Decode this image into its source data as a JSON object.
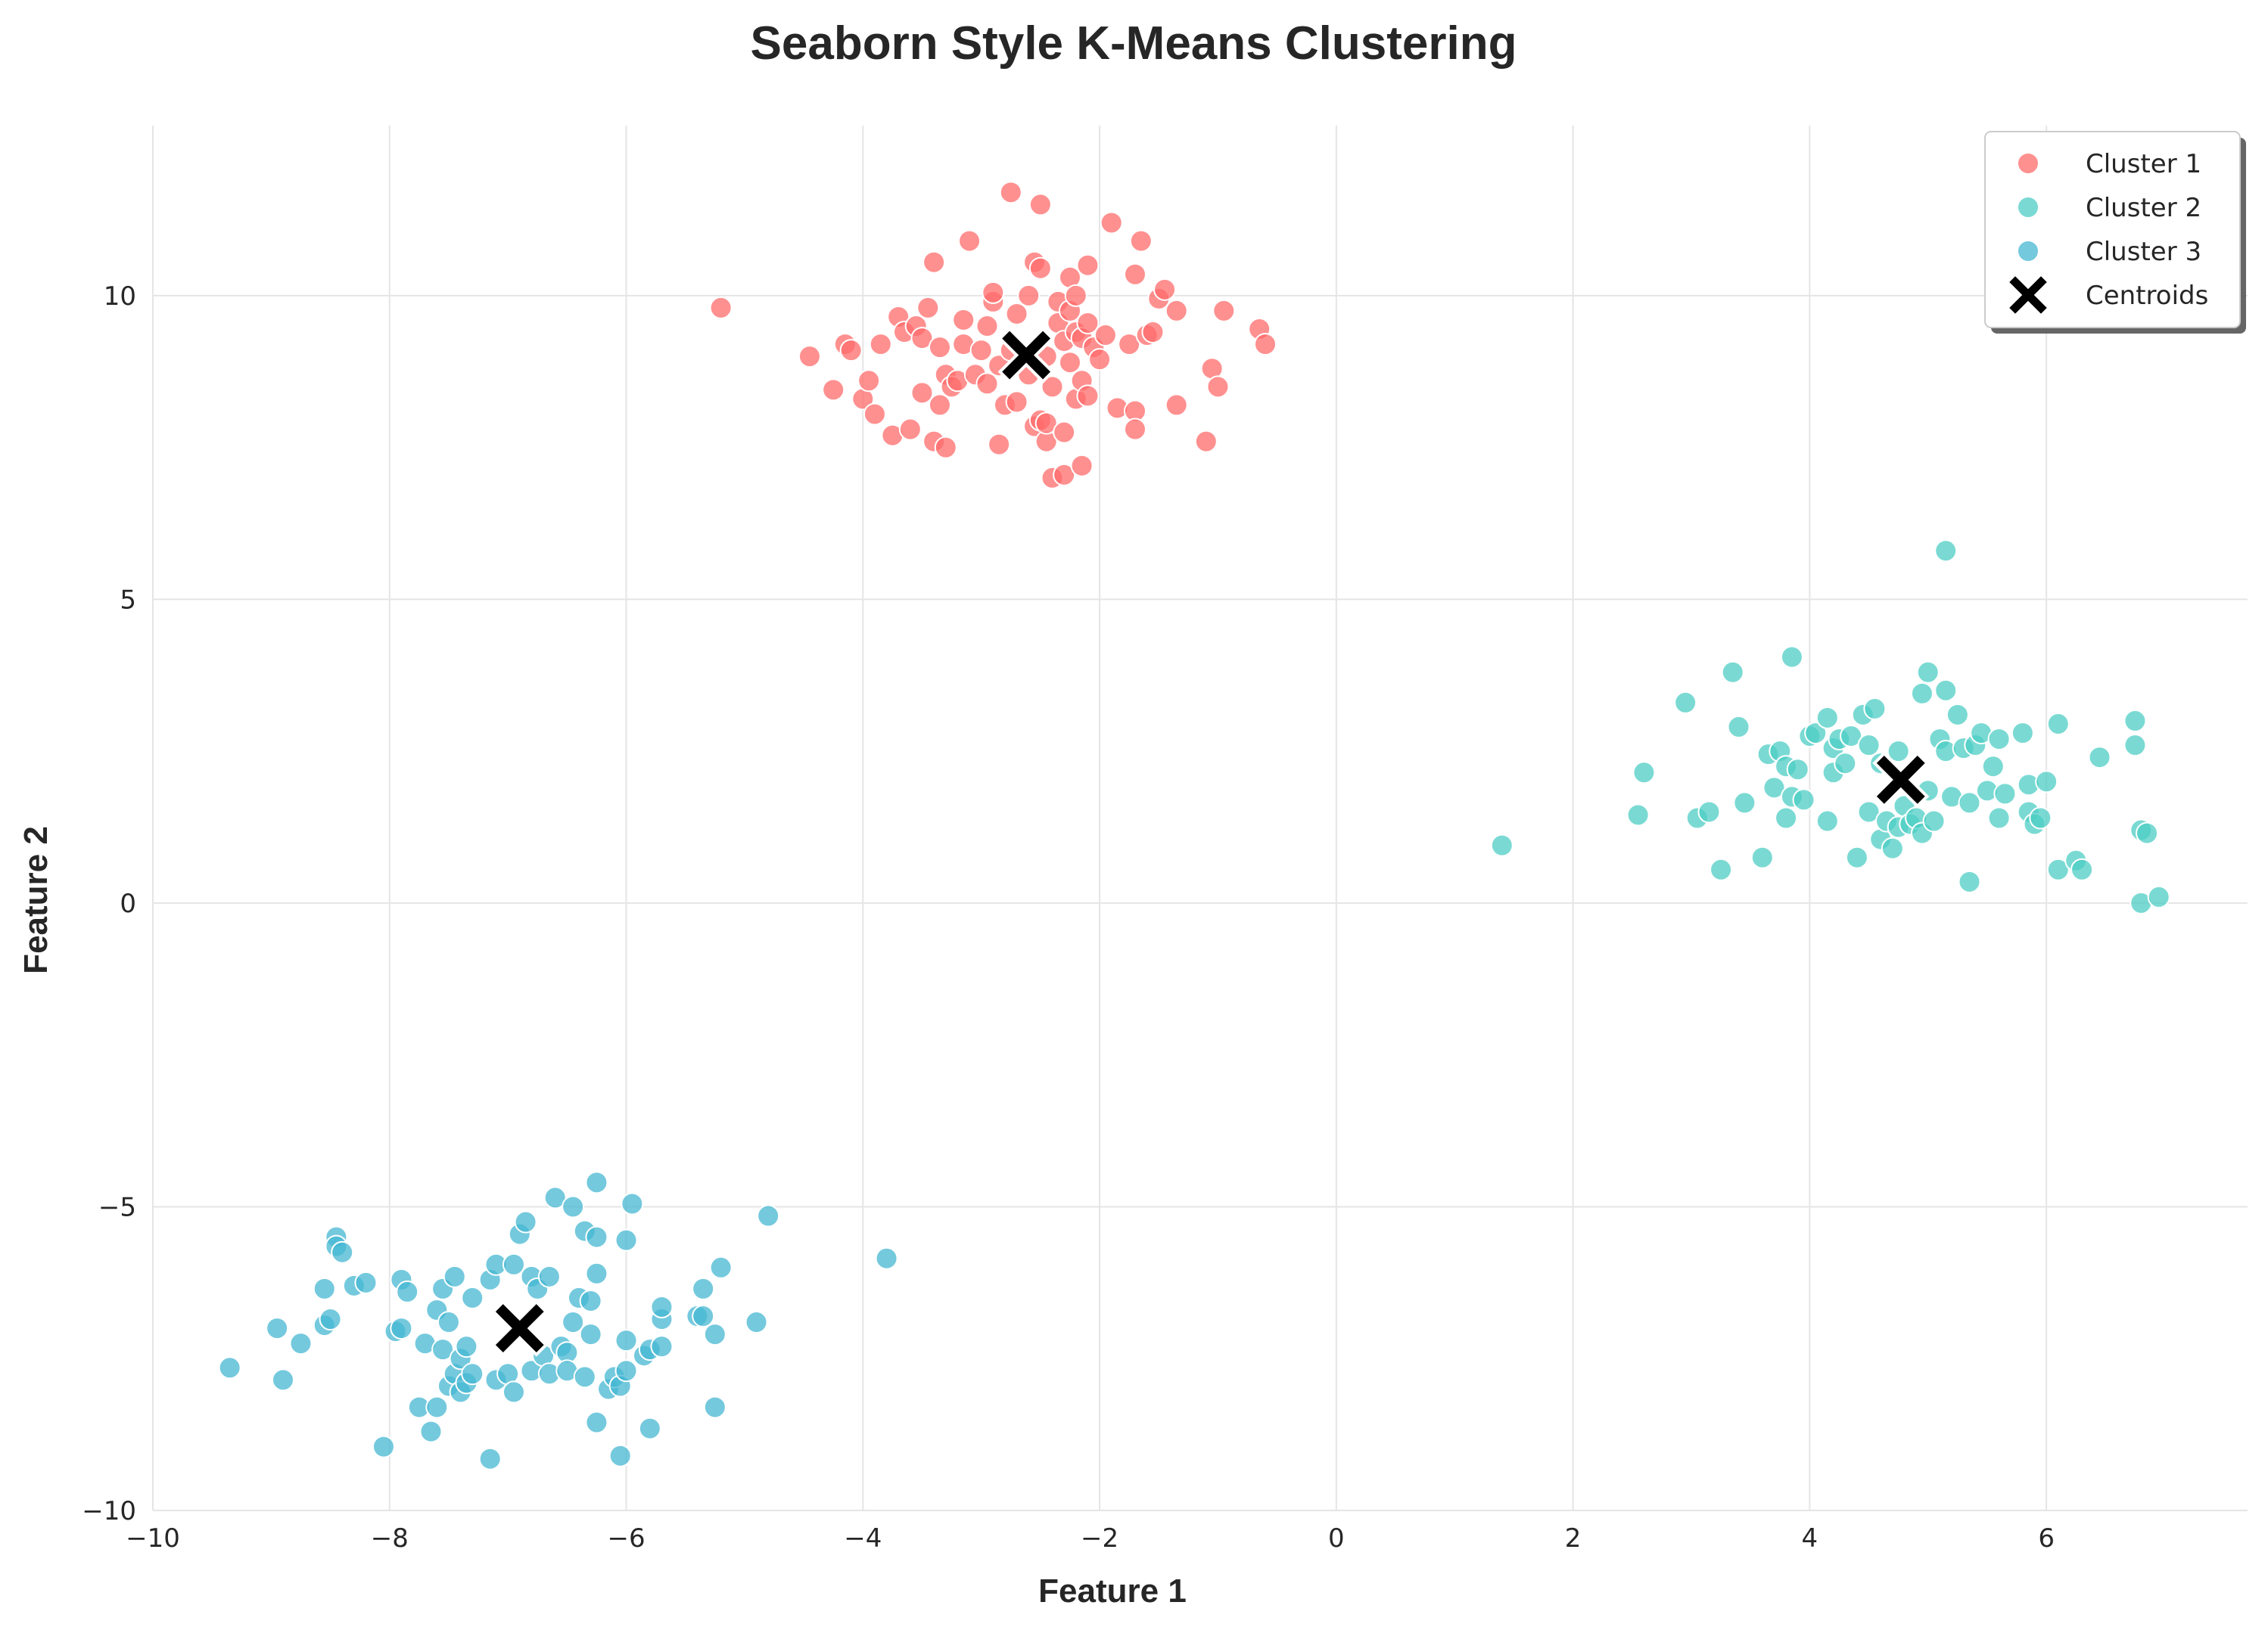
{
  "chart_data": {
    "type": "scatter",
    "title": "Seaborn Style K-Means Clustering",
    "xlabel": "Feature 1",
    "ylabel": "Feature 2",
    "xlim": [
      -10,
      7.7
    ],
    "ylim": [
      -10,
      12.8
    ],
    "xticks": [
      -10,
      -8,
      -6,
      -4,
      -2,
      0,
      2,
      4,
      6
    ],
    "yticks": [
      -10,
      -5,
      0,
      5,
      10
    ],
    "grid": true,
    "legend_position": "top-right",
    "series": [
      {
        "name": "Cluster 1",
        "color": "#ff6b6b",
        "points": [
          [
            -5.2,
            9.8
          ],
          [
            -4.45,
            9.0
          ],
          [
            -4.25,
            8.45
          ],
          [
            -4.15,
            9.2
          ],
          [
            -4.1,
            9.1
          ],
          [
            -4.0,
            8.3
          ],
          [
            -3.95,
            8.6
          ],
          [
            -3.9,
            8.05
          ],
          [
            -3.85,
            9.2
          ],
          [
            -3.75,
            7.7
          ],
          [
            -3.7,
            9.65
          ],
          [
            -3.65,
            9.4
          ],
          [
            -3.6,
            7.8
          ],
          [
            -3.55,
            9.5
          ],
          [
            -3.5,
            8.4
          ],
          [
            -3.5,
            9.3
          ],
          [
            -3.45,
            9.8
          ],
          [
            -3.4,
            10.55
          ],
          [
            -3.4,
            7.6
          ],
          [
            -3.35,
            8.2
          ],
          [
            -3.35,
            9.15
          ],
          [
            -3.3,
            7.5
          ],
          [
            -3.3,
            8.7
          ],
          [
            -3.25,
            8.5
          ],
          [
            -3.2,
            8.6
          ],
          [
            -3.15,
            9.2
          ],
          [
            -3.15,
            9.6
          ],
          [
            -3.1,
            10.9
          ],
          [
            -3.05,
            8.7
          ],
          [
            -3.0,
            9.1
          ],
          [
            -2.95,
            9.5
          ],
          [
            -2.95,
            8.55
          ],
          [
            -2.9,
            9.9
          ],
          [
            -2.9,
            10.05
          ],
          [
            -2.85,
            8.85
          ],
          [
            -2.85,
            7.55
          ],
          [
            -2.8,
            8.2
          ],
          [
            -2.75,
            9.1
          ],
          [
            -2.75,
            11.7
          ],
          [
            -2.7,
            8.25
          ],
          [
            -2.7,
            9.7
          ],
          [
            -2.6,
            8.7
          ],
          [
            -2.6,
            10.0
          ],
          [
            -2.55,
            10.55
          ],
          [
            -2.55,
            7.85
          ],
          [
            -2.5,
            10.45
          ],
          [
            -2.5,
            7.95
          ],
          [
            -2.5,
            11.5
          ],
          [
            -2.45,
            7.6
          ],
          [
            -2.45,
            7.9
          ],
          [
            -2.45,
            9.0
          ],
          [
            -2.4,
            7.0
          ],
          [
            -2.4,
            8.5
          ],
          [
            -2.35,
            9.55
          ],
          [
            -2.35,
            9.9
          ],
          [
            -2.3,
            7.05
          ],
          [
            -2.3,
            7.75
          ],
          [
            -2.3,
            9.25
          ],
          [
            -2.25,
            10.3
          ],
          [
            -2.25,
            9.75
          ],
          [
            -2.25,
            8.9
          ],
          [
            -2.2,
            8.3
          ],
          [
            -2.2,
            9.4
          ],
          [
            -2.2,
            10.0
          ],
          [
            -2.15,
            9.3
          ],
          [
            -2.15,
            8.6
          ],
          [
            -2.15,
            7.2
          ],
          [
            -2.1,
            10.5
          ],
          [
            -2.1,
            9.55
          ],
          [
            -2.1,
            8.35
          ],
          [
            -2.05,
            9.15
          ],
          [
            -2.0,
            8.95
          ],
          [
            -1.95,
            9.35
          ],
          [
            -1.9,
            11.2
          ],
          [
            -1.85,
            8.15
          ],
          [
            -1.75,
            9.2
          ],
          [
            -1.7,
            8.1
          ],
          [
            -1.7,
            7.8
          ],
          [
            -1.7,
            10.35
          ],
          [
            -1.65,
            10.9
          ],
          [
            -1.6,
            9.35
          ],
          [
            -1.55,
            9.4
          ],
          [
            -1.5,
            9.95
          ],
          [
            -1.45,
            10.1
          ],
          [
            -1.35,
            8.2
          ],
          [
            -1.35,
            9.75
          ],
          [
            -1.1,
            7.6
          ],
          [
            -1.05,
            8.8
          ],
          [
            -1.0,
            8.5
          ],
          [
            -0.95,
            9.75
          ],
          [
            -0.65,
            9.45
          ],
          [
            -0.6,
            9.2
          ]
        ]
      },
      {
        "name": "Cluster 2",
        "color": "#4ecdc4",
        "points": [
          [
            1.4,
            0.95
          ],
          [
            2.55,
            1.45
          ],
          [
            2.6,
            2.15
          ],
          [
            2.95,
            3.3
          ],
          [
            3.05,
            1.4
          ],
          [
            3.15,
            1.5
          ],
          [
            3.25,
            0.55
          ],
          [
            3.35,
            3.8
          ],
          [
            3.4,
            2.9
          ],
          [
            3.45,
            1.65
          ],
          [
            3.6,
            0.75
          ],
          [
            3.65,
            2.45
          ],
          [
            3.7,
            1.9
          ],
          [
            3.75,
            2.5
          ],
          [
            3.8,
            2.25
          ],
          [
            3.8,
            1.4
          ],
          [
            3.85,
            4.05
          ],
          [
            3.85,
            1.75
          ],
          [
            3.9,
            2.2
          ],
          [
            3.95,
            1.7
          ],
          [
            4.0,
            2.75
          ],
          [
            4.05,
            2.8
          ],
          [
            4.15,
            3.05
          ],
          [
            4.15,
            1.35
          ],
          [
            4.2,
            2.55
          ],
          [
            4.2,
            2.15
          ],
          [
            4.25,
            2.7
          ],
          [
            4.3,
            2.3
          ],
          [
            4.35,
            2.75
          ],
          [
            4.4,
            0.75
          ],
          [
            4.45,
            3.1
          ],
          [
            4.5,
            1.5
          ],
          [
            4.5,
            2.6
          ],
          [
            4.55,
            3.2
          ],
          [
            4.6,
            1.05
          ],
          [
            4.6,
            2.3
          ],
          [
            4.65,
            1.35
          ],
          [
            4.7,
            0.9
          ],
          [
            4.75,
            1.25
          ],
          [
            4.75,
            2.5
          ],
          [
            4.8,
            1.6
          ],
          [
            4.85,
            1.3
          ],
          [
            4.9,
            1.4
          ],
          [
            4.95,
            1.15
          ],
          [
            4.95,
            3.45
          ],
          [
            5.0,
            3.8
          ],
          [
            5.0,
            1.85
          ],
          [
            5.05,
            1.35
          ],
          [
            5.1,
            2.7
          ],
          [
            5.15,
            2.5
          ],
          [
            5.15,
            5.8
          ],
          [
            5.15,
            3.5
          ],
          [
            5.2,
            1.75
          ],
          [
            5.25,
            3.1
          ],
          [
            5.3,
            2.55
          ],
          [
            5.35,
            0.35
          ],
          [
            5.35,
            1.65
          ],
          [
            5.4,
            2.6
          ],
          [
            5.45,
            2.8
          ],
          [
            5.5,
            1.85
          ],
          [
            5.55,
            2.25
          ],
          [
            5.6,
            1.4
          ],
          [
            5.6,
            2.7
          ],
          [
            5.65,
            1.8
          ],
          [
            5.8,
            2.8
          ],
          [
            5.85,
            1.5
          ],
          [
            5.85,
            1.95
          ],
          [
            5.9,
            1.3
          ],
          [
            5.95,
            1.4
          ],
          [
            6.0,
            2.0
          ],
          [
            6.1,
            0.55
          ],
          [
            6.1,
            2.95
          ],
          [
            6.25,
            0.7
          ],
          [
            6.3,
            0.55
          ],
          [
            6.45,
            2.4
          ],
          [
            6.75,
            3.0
          ],
          [
            6.75,
            2.6
          ],
          [
            6.8,
            0.0
          ],
          [
            6.8,
            1.2
          ],
          [
            6.85,
            1.15
          ],
          [
            6.95,
            0.1
          ]
        ]
      },
      {
        "name": "Cluster 3",
        "color": "#45b7d1",
        "points": [
          [
            -9.35,
            -7.65
          ],
          [
            -8.95,
            -7.0
          ],
          [
            -8.9,
            -7.85
          ],
          [
            -8.75,
            -7.25
          ],
          [
            -8.55,
            -6.95
          ],
          [
            -8.55,
            -6.35
          ],
          [
            -8.5,
            -6.85
          ],
          [
            -8.45,
            -5.5
          ],
          [
            -8.45,
            -5.65
          ],
          [
            -8.4,
            -5.75
          ],
          [
            -8.3,
            -6.3
          ],
          [
            -8.2,
            -6.25
          ],
          [
            -8.05,
            -8.95
          ],
          [
            -7.95,
            -7.05
          ],
          [
            -7.9,
            -7.0
          ],
          [
            -7.9,
            -6.2
          ],
          [
            -7.85,
            -6.4
          ],
          [
            -7.75,
            -8.3
          ],
          [
            -7.7,
            -7.25
          ],
          [
            -7.65,
            -8.7
          ],
          [
            -7.6,
            -8.3
          ],
          [
            -7.6,
            -6.7
          ],
          [
            -7.55,
            -6.35
          ],
          [
            -7.55,
            -7.35
          ],
          [
            -7.5,
            -7.95
          ],
          [
            -7.5,
            -6.9
          ],
          [
            -7.45,
            -6.15
          ],
          [
            -7.45,
            -7.75
          ],
          [
            -7.4,
            -8.05
          ],
          [
            -7.4,
            -7.5
          ],
          [
            -7.35,
            -7.9
          ],
          [
            -7.35,
            -7.3
          ],
          [
            -7.3,
            -6.5
          ],
          [
            -7.3,
            -7.75
          ],
          [
            -7.15,
            -9.15
          ],
          [
            -7.15,
            -6.2
          ],
          [
            -7.1,
            -5.95
          ],
          [
            -7.1,
            -7.85
          ],
          [
            -7.0,
            -7.75
          ],
          [
            -6.95,
            -5.95
          ],
          [
            -6.95,
            -8.05
          ],
          [
            -6.9,
            -5.45
          ],
          [
            -6.85,
            -5.25
          ],
          [
            -6.8,
            -6.15
          ],
          [
            -6.8,
            -7.7
          ],
          [
            -6.75,
            -6.35
          ],
          [
            -6.7,
            -7.45
          ],
          [
            -6.65,
            -6.15
          ],
          [
            -6.65,
            -7.75
          ],
          [
            -6.6,
            -4.85
          ],
          [
            -6.55,
            -7.3
          ],
          [
            -6.5,
            -7.4
          ],
          [
            -6.5,
            -7.7
          ],
          [
            -6.45,
            -5.0
          ],
          [
            -6.45,
            -6.9
          ],
          [
            -6.4,
            -6.5
          ],
          [
            -6.35,
            -5.4
          ],
          [
            -6.35,
            -7.8
          ],
          [
            -6.3,
            -7.1
          ],
          [
            -6.3,
            -6.55
          ],
          [
            -6.25,
            -4.6
          ],
          [
            -6.25,
            -5.5
          ],
          [
            -6.25,
            -6.1
          ],
          [
            -6.25,
            -8.55
          ],
          [
            -6.15,
            -8.0
          ],
          [
            -6.1,
            -7.8
          ],
          [
            -6.05,
            -9.1
          ],
          [
            -6.05,
            -7.95
          ],
          [
            -6.0,
            -5.55
          ],
          [
            -6.0,
            -7.7
          ],
          [
            -6.0,
            -7.2
          ],
          [
            -5.95,
            -4.95
          ],
          [
            -5.85,
            -7.45
          ],
          [
            -5.8,
            -7.35
          ],
          [
            -5.8,
            -8.65
          ],
          [
            -5.7,
            -7.3
          ],
          [
            -5.7,
            -6.85
          ],
          [
            -5.7,
            -6.65
          ],
          [
            -5.4,
            -6.8
          ],
          [
            -5.35,
            -6.8
          ],
          [
            -5.35,
            -6.35
          ],
          [
            -5.25,
            -8.3
          ],
          [
            -5.25,
            -7.1
          ],
          [
            -5.2,
            -6.0
          ],
          [
            -4.9,
            -6.9
          ],
          [
            -4.8,
            -5.15
          ],
          [
            -3.8,
            -5.85
          ]
        ]
      },
      {
        "name": "Centroids",
        "color": "#000000",
        "marker": "X",
        "points": [
          [
            -2.62,
            9.02
          ],
          [
            4.77,
            2.03
          ],
          [
            -6.9,
            -7.0
          ]
        ]
      }
    ]
  }
}
